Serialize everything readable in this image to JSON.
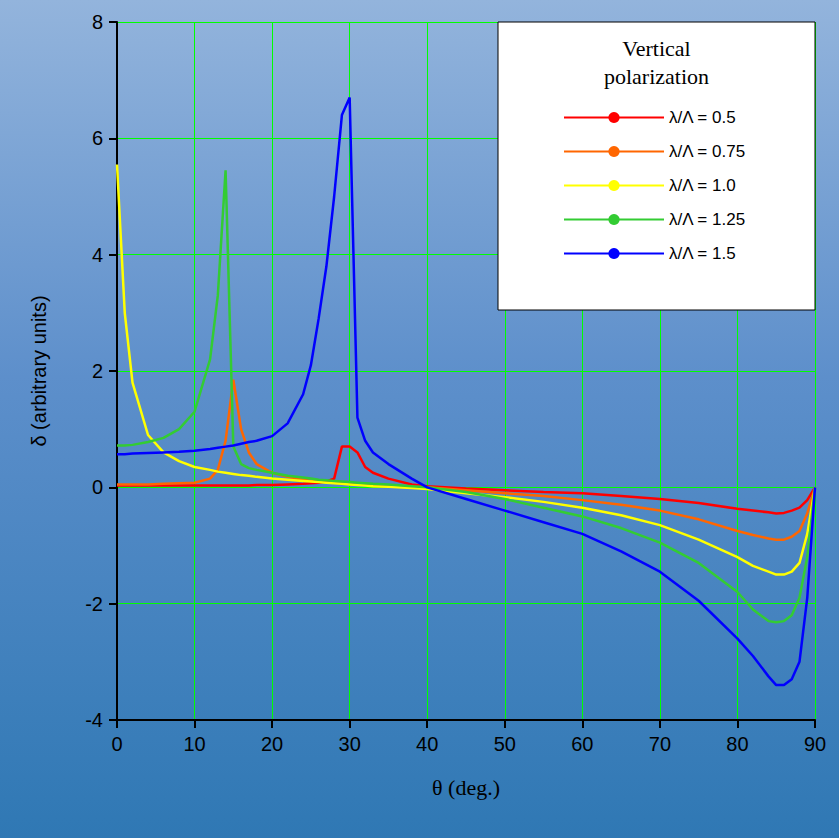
{
  "chart_data": {
    "type": "line",
    "legend_title": "Vertical polarization",
    "x_label": "θ (deg.)",
    "y_label": "δ (arbitrary units)",
    "x": [
      0,
      1,
      2,
      4,
      6,
      8,
      10,
      12,
      13,
      14,
      15,
      16,
      17,
      18,
      20,
      22,
      24,
      25,
      26,
      27,
      28,
      29,
      30,
      31,
      32,
      33,
      35,
      38,
      40,
      45,
      50,
      55,
      60,
      65,
      70,
      75,
      80,
      82,
      84,
      85,
      86,
      87,
      88,
      89,
      90
    ],
    "series": [
      {
        "name": "λ/Λ = 0.5",
        "color": "#ff0000",
        "values": [
          0.03,
          0.03,
          0.03,
          0.03,
          0.03,
          0.03,
          0.03,
          0.03,
          0.03,
          0.03,
          0.03,
          0.03,
          0.03,
          0.04,
          0.04,
          0.05,
          0.06,
          0.07,
          0.08,
          0.1,
          0.15,
          0.7,
          0.7,
          0.6,
          0.35,
          0.25,
          0.15,
          0.05,
          0.02,
          -0.02,
          -0.05,
          -0.08,
          -0.1,
          -0.15,
          -0.2,
          -0.27,
          -0.37,
          -0.4,
          -0.43,
          -0.45,
          -0.44,
          -0.4,
          -0.35,
          -0.22,
          0
        ]
      },
      {
        "name": "λ/Λ = 0.75",
        "color": "#ff6600",
        "values": [
          0.05,
          0.05,
          0.05,
          0.05,
          0.06,
          0.07,
          0.08,
          0.15,
          0.3,
          0.8,
          1.85,
          1.0,
          0.6,
          0.4,
          0.25,
          0.18,
          0.13,
          0.11,
          0.1,
          0.09,
          0.08,
          0.07,
          0.06,
          0.05,
          0.05,
          0.04,
          0.03,
          0.01,
          0,
          -0.05,
          -0.1,
          -0.15,
          -0.22,
          -0.3,
          -0.4,
          -0.55,
          -0.75,
          -0.82,
          -0.88,
          -0.9,
          -0.9,
          -0.85,
          -0.75,
          -0.45,
          0
        ]
      },
      {
        "name": "λ/Λ = 1.0",
        "color": "#ffff00",
        "values": [
          5.55,
          3.0,
          1.8,
          0.9,
          0.6,
          0.45,
          0.35,
          0.3,
          0.27,
          0.25,
          0.23,
          0.21,
          0.2,
          0.18,
          0.15,
          0.13,
          0.11,
          0.1,
          0.09,
          0.08,
          0.07,
          0.06,
          0.05,
          0.04,
          0.03,
          0.02,
          0.01,
          -0.01,
          -0.03,
          -0.1,
          -0.17,
          -0.25,
          -0.35,
          -0.48,
          -0.65,
          -0.9,
          -1.2,
          -1.35,
          -1.45,
          -1.5,
          -1.5,
          -1.45,
          -1.3,
          -0.8,
          0
        ]
      },
      {
        "name": "λ/Λ = 1.25",
        "color": "#33cc33",
        "values": [
          0.72,
          0.72,
          0.73,
          0.78,
          0.85,
          1.0,
          1.3,
          2.2,
          3.3,
          5.45,
          0.7,
          0.4,
          0.33,
          0.3,
          0.25,
          0.2,
          0.17,
          0.15,
          0.13,
          0.12,
          0.11,
          0.1,
          0.09,
          0.08,
          0.07,
          0.06,
          0.05,
          0.02,
          0,
          -0.08,
          -0.2,
          -0.35,
          -0.5,
          -0.7,
          -0.95,
          -1.3,
          -1.8,
          -2.1,
          -2.3,
          -2.32,
          -2.3,
          -2.2,
          -1.9,
          -1.2,
          0
        ]
      },
      {
        "name": "λ/Λ = 1.5",
        "color": "#0000ff",
        "values": [
          0.57,
          0.57,
          0.58,
          0.59,
          0.6,
          0.61,
          0.63,
          0.66,
          0.68,
          0.7,
          0.72,
          0.75,
          0.78,
          0.8,
          0.88,
          1.1,
          1.6,
          2.1,
          2.9,
          3.8,
          5.0,
          6.4,
          6.7,
          1.2,
          0.8,
          0.6,
          0.4,
          0.15,
          0,
          -0.2,
          -0.4,
          -0.6,
          -0.8,
          -1.1,
          -1.45,
          -1.95,
          -2.6,
          -2.9,
          -3.25,
          -3.4,
          -3.4,
          -3.3,
          -3.0,
          -1.9,
          0
        ]
      }
    ],
    "xlim": [
      0,
      90
    ],
    "xticks": [
      0,
      10,
      20,
      30,
      40,
      50,
      60,
      70,
      80,
      90
    ],
    "ylim": [
      -4,
      8
    ],
    "yticks": [
      -4,
      -2,
      0,
      2,
      4,
      6,
      8
    ],
    "grid": true,
    "legend": "upper right"
  }
}
